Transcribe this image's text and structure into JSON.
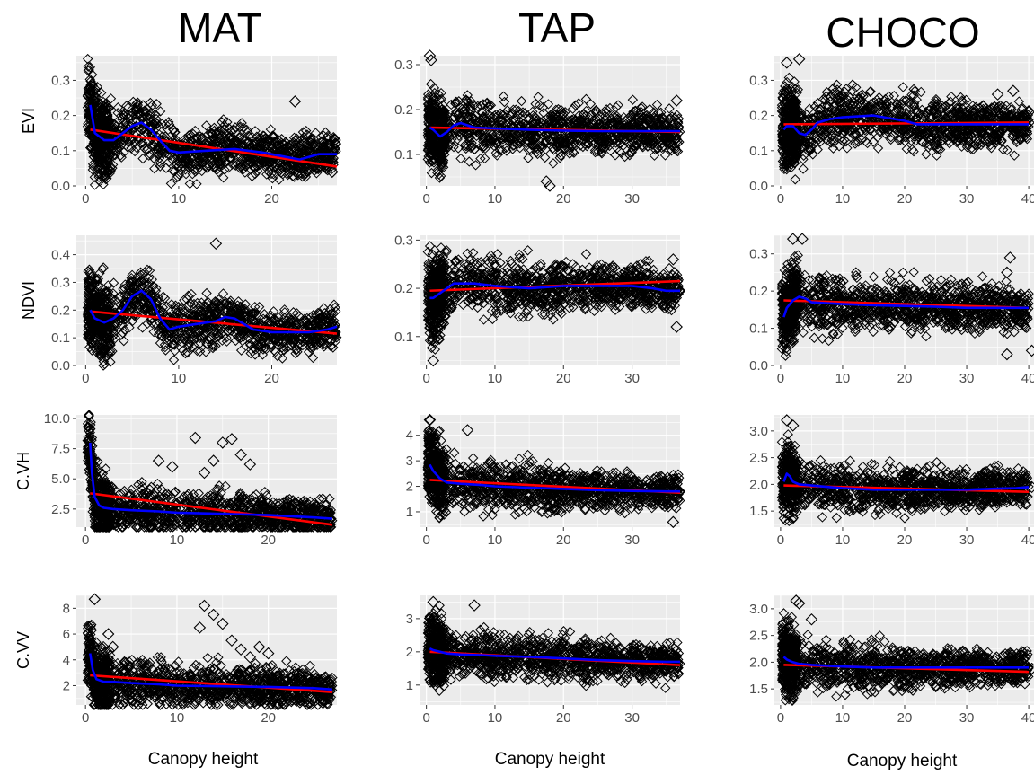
{
  "column_titles": [
    "MAT",
    "TAP",
    "CHOCO"
  ],
  "x_axis_title": "Canopy height",
  "colors": {
    "panel_background": "#ebebeb",
    "grid_major": "#ffffff",
    "points": "#000000",
    "linear_fit": "#ff0000",
    "smooth_fit": "#0000ff"
  },
  "chart_data": [
    {
      "type": "scatter",
      "site": "MAT",
      "ylabel": "EVI",
      "xlim": [
        -1,
        27
      ],
      "ylim": [
        0,
        0.37
      ],
      "xticks": [
        0,
        10,
        20
      ],
      "yticks": [
        0.0,
        0.1,
        0.2,
        0.3
      ],
      "yticklabels": [
        "0.0",
        "0.1",
        "0.2",
        "0.3"
      ],
      "linear_fit": {
        "x": [
          0.5,
          27
        ],
        "y": [
          0.16,
          0.055
        ]
      },
      "smooth_fit": {
        "x": [
          0.5,
          1,
          2,
          3,
          4,
          5,
          6,
          7,
          8,
          9,
          10,
          13,
          16,
          19,
          21,
          23,
          25,
          27
        ],
        "y": [
          0.23,
          0.15,
          0.13,
          0.13,
          0.15,
          0.17,
          0.18,
          0.16,
          0.13,
          0.1,
          0.095,
          0.1,
          0.105,
          0.095,
          0.085,
          0.075,
          0.09,
          0.09
        ]
      },
      "outliers": [
        [
          26.8,
          0.13
        ],
        [
          26.8,
          0.12
        ],
        [
          26.5,
          0.04
        ],
        [
          25,
          0.05
        ],
        [
          22.5,
          0.24
        ],
        [
          21,
          0.04
        ]
      ]
    },
    {
      "type": "scatter",
      "site": "TAP",
      "ylabel": "",
      "xlim": [
        -1,
        37
      ],
      "ylim": [
        0.03,
        0.32
      ],
      "xticks": [
        0,
        10,
        20,
        30
      ],
      "yticks": [
        0.1,
        0.2,
        0.3
      ],
      "yticklabels": [
        "0.1",
        "0.2",
        "0.3"
      ],
      "linear_fit": {
        "x": [
          0.5,
          37
        ],
        "y": [
          0.16,
          0.15
        ]
      },
      "smooth_fit": {
        "x": [
          0.5,
          1,
          2,
          3,
          4,
          5,
          7,
          10,
          15,
          20,
          25,
          30,
          35,
          37
        ],
        "y": [
          0.16,
          0.155,
          0.14,
          0.15,
          0.165,
          0.17,
          0.16,
          0.158,
          0.155,
          0.153,
          0.152,
          0.152,
          0.152,
          0.152
        ]
      },
      "outliers": [
        [
          0.5,
          0.32
        ],
        [
          0.7,
          0.31
        ],
        [
          36.5,
          0.22
        ],
        [
          17.5,
          0.04
        ],
        [
          18,
          0.03
        ]
      ]
    },
    {
      "type": "scatter",
      "site": "CHOCO",
      "ylabel": "",
      "xlim": [
        -1,
        41
      ],
      "ylim": [
        0,
        0.37
      ],
      "xticks": [
        0,
        10,
        20,
        30,
        40
      ],
      "yticks": [
        0.0,
        0.1,
        0.2,
        0.3
      ],
      "yticklabels": [
        "0.0",
        "0.1",
        "0.2",
        "0.3"
      ],
      "linear_fit": {
        "x": [
          0.5,
          40
        ],
        "y": [
          0.175,
          0.18
        ]
      },
      "smooth_fit": {
        "x": [
          0.5,
          1,
          2,
          3,
          4,
          5,
          6,
          8,
          10,
          15,
          20,
          22,
          25,
          30,
          35,
          40
        ],
        "y": [
          0.16,
          0.17,
          0.17,
          0.15,
          0.145,
          0.16,
          0.18,
          0.19,
          0.195,
          0.2,
          0.185,
          0.175,
          0.175,
          0.175,
          0.175,
          0.175
        ]
      },
      "outliers": [
        [
          37.5,
          0.27
        ],
        [
          37.5,
          0.14
        ],
        [
          35,
          0.26
        ],
        [
          40,
          0.21
        ],
        [
          40,
          0.18
        ],
        [
          1,
          0.35
        ],
        [
          3,
          0.36
        ]
      ]
    },
    {
      "type": "scatter",
      "site": "MAT",
      "ylabel": "NDVI",
      "xlim": [
        -1,
        27
      ],
      "ylim": [
        0,
        0.47
      ],
      "xticks": [
        0,
        10,
        20
      ],
      "yticks": [
        0.0,
        0.1,
        0.2,
        0.3,
        0.4
      ],
      "yticklabels": [
        "0.0",
        "0.1",
        "0.2",
        "0.3",
        "0.4"
      ],
      "linear_fit": {
        "x": [
          0.5,
          27
        ],
        "y": [
          0.195,
          0.115
        ]
      },
      "smooth_fit": {
        "x": [
          0.5,
          1,
          2,
          3,
          4,
          5,
          6,
          7,
          8,
          9,
          10,
          12,
          14,
          15,
          16,
          18,
          20,
          22,
          24,
          26,
          27
        ],
        "y": [
          0.2,
          0.17,
          0.155,
          0.17,
          0.2,
          0.25,
          0.27,
          0.24,
          0.17,
          0.13,
          0.14,
          0.15,
          0.16,
          0.175,
          0.17,
          0.13,
          0.12,
          0.12,
          0.12,
          0.13,
          0.14
        ]
      },
      "outliers": [
        [
          14,
          0.44
        ],
        [
          26.5,
          0.11
        ],
        [
          26.8,
          0.12
        ]
      ]
    },
    {
      "type": "scatter",
      "site": "TAP",
      "ylabel": "",
      "xlim": [
        -1,
        37
      ],
      "ylim": [
        0.04,
        0.31
      ],
      "xticks": [
        0,
        10,
        20,
        30
      ],
      "yticks": [
        0.1,
        0.2,
        0.3
      ],
      "yticklabels": [
        "0.1",
        "0.2",
        "0.3"
      ],
      "linear_fit": {
        "x": [
          0.5,
          37
        ],
        "y": [
          0.195,
          0.215
        ]
      },
      "smooth_fit": {
        "x": [
          0.5,
          1,
          2,
          3,
          4,
          5,
          7,
          10,
          15,
          20,
          25,
          30,
          33,
          35,
          37
        ],
        "y": [
          0.18,
          0.18,
          0.19,
          0.2,
          0.21,
          0.21,
          0.21,
          0.205,
          0.2,
          0.205,
          0.205,
          0.205,
          0.2,
          0.195,
          0.195
        ]
      },
      "outliers": [
        [
          36.5,
          0.12
        ],
        [
          1,
          0.05
        ],
        [
          36,
          0.26
        ]
      ]
    },
    {
      "type": "scatter",
      "site": "CHOCO",
      "ylabel": "",
      "xlim": [
        -1,
        41
      ],
      "ylim": [
        0,
        0.35
      ],
      "xticks": [
        0,
        10,
        20,
        30,
        40
      ],
      "yticks": [
        0.0,
        0.1,
        0.2,
        0.3
      ],
      "yticklabels": [
        "0.0",
        "0.1",
        "0.2",
        "0.3"
      ],
      "linear_fit": {
        "x": [
          0.5,
          40
        ],
        "y": [
          0.175,
          0.155
        ]
      },
      "smooth_fit": {
        "x": [
          0.5,
          1,
          2,
          3,
          4,
          5,
          7,
          10,
          15,
          20,
          25,
          30,
          35,
          40
        ],
        "y": [
          0.13,
          0.155,
          0.175,
          0.185,
          0.18,
          0.17,
          0.168,
          0.165,
          0.162,
          0.16,
          0.158,
          0.155,
          0.155,
          0.155
        ]
      },
      "outliers": [
        [
          37,
          0.29
        ],
        [
          36.5,
          0.25
        ],
        [
          40.5,
          0.04
        ],
        [
          36.5,
          0.03
        ],
        [
          2,
          0.34
        ],
        [
          3.5,
          0.34
        ]
      ]
    },
    {
      "type": "scatter",
      "site": "MAT",
      "ylabel": "C.VH",
      "xlim": [
        -1,
        27.5
      ],
      "ylim": [
        1,
        10.3
      ],
      "xticks": [
        0,
        10,
        20
      ],
      "yticks": [
        2.5,
        5.0,
        7.5,
        10.0
      ],
      "yticklabels": [
        "2.5",
        "5.0",
        "7.5",
        "10.0"
      ],
      "linear_fit": {
        "x": [
          0.5,
          27
        ],
        "y": [
          3.8,
          1.2
        ]
      },
      "smooth_fit": {
        "x": [
          0.5,
          0.7,
          1,
          1.5,
          2,
          3,
          5,
          8,
          10,
          15,
          20,
          25,
          27
        ],
        "y": [
          8,
          5.5,
          3.5,
          2.8,
          2.6,
          2.5,
          2.4,
          2.3,
          2.2,
          2.1,
          2.0,
          1.8,
          1.7
        ]
      },
      "outliers": [
        [
          12,
          8.4
        ],
        [
          15,
          8
        ],
        [
          16,
          8.3
        ],
        [
          14,
          6.5
        ],
        [
          17,
          7
        ],
        [
          13,
          5.5
        ],
        [
          18,
          6.2
        ],
        [
          8,
          6.5
        ],
        [
          9.5,
          6
        ],
        [
          26.8,
          1.7
        ]
      ]
    },
    {
      "type": "scatter",
      "site": "TAP",
      "ylabel": "",
      "xlim": [
        -1,
        37
      ],
      "ylim": [
        0.4,
        4.8
      ],
      "xticks": [
        0,
        10,
        20,
        30
      ],
      "yticks": [
        1,
        2,
        3,
        4
      ],
      "yticklabels": [
        "1",
        "2",
        "3",
        "4"
      ],
      "linear_fit": {
        "x": [
          0.5,
          37
        ],
        "y": [
          2.25,
          1.75
        ]
      },
      "smooth_fit": {
        "x": [
          0.5,
          1,
          2,
          3,
          5,
          8,
          10,
          15,
          20,
          25,
          30,
          35,
          37
        ],
        "y": [
          2.85,
          2.6,
          2.3,
          2.15,
          2.1,
          2.05,
          2.0,
          1.95,
          1.9,
          1.85,
          1.82,
          1.8,
          1.8
        ]
      },
      "outliers": [
        [
          0.5,
          4.6
        ],
        [
          36.5,
          2.1
        ],
        [
          36,
          0.6
        ],
        [
          6,
          4.2
        ]
      ]
    },
    {
      "type": "scatter",
      "site": "CHOCO",
      "ylabel": "",
      "xlim": [
        -1,
        41
      ],
      "ylim": [
        1.2,
        3.3
      ],
      "xticks": [
        0,
        10,
        20,
        30,
        40
      ],
      "yticks": [
        1.5,
        2.0,
        2.5,
        3.0
      ],
      "yticklabels": [
        "1.5",
        "2.0",
        "2.5",
        "3.0"
      ],
      "linear_fit": {
        "x": [
          0.5,
          40
        ],
        "y": [
          1.98,
          1.86
        ]
      },
      "smooth_fit": {
        "x": [
          0.5,
          1,
          1.5,
          2,
          3,
          5,
          8,
          10,
          15,
          20,
          25,
          30,
          35,
          38,
          40
        ],
        "y": [
          2.05,
          2.2,
          2.15,
          2.05,
          2.0,
          1.98,
          1.95,
          1.93,
          1.9,
          1.9,
          1.9,
          1.9,
          1.92,
          1.93,
          1.95
        ]
      },
      "outliers": [
        [
          40.5,
          1.95
        ],
        [
          38,
          1.9
        ],
        [
          1,
          3.2
        ],
        [
          2,
          3.1
        ]
      ]
    },
    {
      "type": "scatter",
      "site": "MAT",
      "ylabel": "C.VV",
      "xlim": [
        -1,
        27.5
      ],
      "ylim": [
        0.5,
        9
      ],
      "xticks": [
        0,
        10,
        20
      ],
      "yticks": [
        2,
        4,
        6,
        8
      ],
      "yticklabels": [
        "2",
        "4",
        "6",
        "8"
      ],
      "linear_fit": {
        "x": [
          0.5,
          27
        ],
        "y": [
          2.8,
          1.5
        ]
      },
      "smooth_fit": {
        "x": [
          0.5,
          0.8,
          1.2,
          2,
          3,
          5,
          8,
          10,
          15,
          20,
          25,
          27
        ],
        "y": [
          4.5,
          3.2,
          2.5,
          2.3,
          2.3,
          2.2,
          2.1,
          2.0,
          1.95,
          1.9,
          1.8,
          1.7
        ]
      },
      "outliers": [
        [
          1,
          8.7
        ],
        [
          13,
          8.2
        ],
        [
          14,
          7.5
        ],
        [
          15,
          6.8
        ],
        [
          12.5,
          6.5
        ],
        [
          16,
          5.5
        ],
        [
          17,
          4.8
        ],
        [
          18,
          4.2
        ],
        [
          19,
          5
        ],
        [
          20,
          4.5
        ],
        [
          2.5,
          6
        ],
        [
          3,
          5
        ]
      ]
    },
    {
      "type": "scatter",
      "site": "TAP",
      "ylabel": "",
      "xlim": [
        -1,
        37
      ],
      "ylim": [
        0.4,
        3.7
      ],
      "xticks": [
        0,
        10,
        20,
        30
      ],
      "yticks": [
        1,
        2,
        3
      ],
      "yticklabels": [
        "1",
        "2",
        "3"
      ],
      "linear_fit": {
        "x": [
          0.5,
          37
        ],
        "y": [
          2.0,
          1.6
        ]
      },
      "smooth_fit": {
        "x": [
          0.5,
          1,
          2,
          3,
          5,
          8,
          10,
          15,
          20,
          25,
          30,
          35,
          37
        ],
        "y": [
          2.1,
          2.05,
          2.0,
          1.95,
          1.92,
          1.9,
          1.88,
          1.85,
          1.8,
          1.75,
          1.72,
          1.7,
          1.7
        ]
      },
      "outliers": [
        [
          1,
          3.5
        ],
        [
          7,
          3.4
        ],
        [
          36,
          1.8
        ]
      ]
    },
    {
      "type": "scatter",
      "site": "CHOCO",
      "ylabel": "",
      "xlim": [
        -1,
        41
      ],
      "ylim": [
        1.2,
        3.25
      ],
      "xticks": [
        0,
        10,
        20,
        30,
        40
      ],
      "yticks": [
        1.5,
        2.0,
        2.5,
        3.0
      ],
      "yticklabels": [
        "1.5",
        "2.0",
        "2.5",
        "3.0"
      ],
      "linear_fit": {
        "x": [
          0.5,
          40
        ],
        "y": [
          1.95,
          1.82
        ]
      },
      "smooth_fit": {
        "x": [
          0.5,
          1,
          2,
          3,
          5,
          8,
          10,
          15,
          20,
          25,
          30,
          35,
          38,
          40
        ],
        "y": [
          2.1,
          2.05,
          2.0,
          1.97,
          1.95,
          1.93,
          1.92,
          1.9,
          1.9,
          1.9,
          1.9,
          1.9,
          1.9,
          1.9
        ]
      },
      "outliers": [
        [
          40.5,
          1.88
        ],
        [
          38,
          1.85
        ],
        [
          2.5,
          3.15
        ],
        [
          3,
          3.1
        ],
        [
          5,
          2.8
        ]
      ]
    }
  ]
}
